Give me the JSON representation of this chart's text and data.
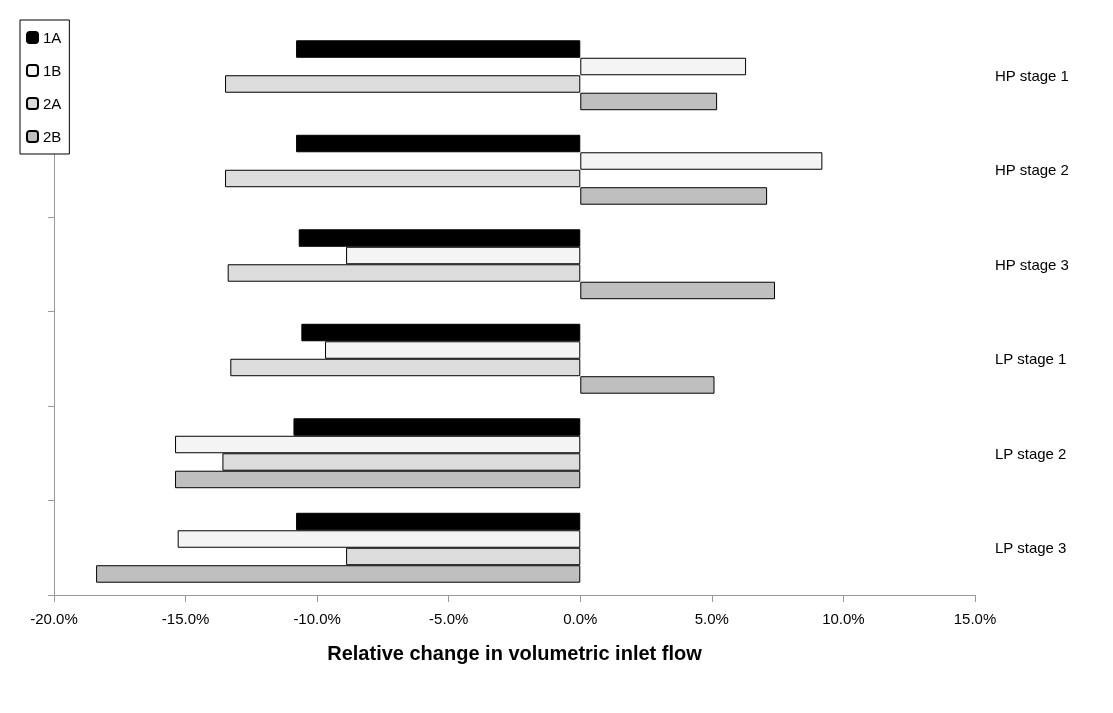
{
  "chart_data": {
    "type": "bar",
    "orientation": "horizontal",
    "xlabel": "Relative change in volumetric inlet flow",
    "categories": [
      "HP stage 1",
      "HP stage 2",
      "HP stage 3",
      "LP stage 1",
      "LP stage 2",
      "LP stage 3"
    ],
    "series": [
      {
        "name": "1A",
        "color": "#000000",
        "values": [
          -10.8,
          -10.8,
          -10.7,
          -10.6,
          -10.9,
          -10.8
        ]
      },
      {
        "name": "1B",
        "color": "#f4f4f4",
        "values": [
          6.3,
          9.2,
          -8.9,
          -9.7,
          -15.4,
          -15.3
        ]
      },
      {
        "name": "2A",
        "color": "#dcdcdc",
        "values": [
          -13.5,
          -13.5,
          -13.4,
          -13.3,
          -13.6,
          -8.9
        ]
      },
      {
        "name": "2B",
        "color": "#bfbfbf",
        "values": [
          5.2,
          7.1,
          7.4,
          5.1,
          -15.4,
          -18.4
        ]
      }
    ],
    "xlim": [
      -20,
      15
    ],
    "xticks": [
      {
        "value": -20,
        "label": "-20.0%"
      },
      {
        "value": -15,
        "label": "-15.0%"
      },
      {
        "value": -10,
        "label": "-10.0%"
      },
      {
        "value": -5,
        "label": "-5.0%"
      },
      {
        "value": 0,
        "label": "0.0%"
      },
      {
        "value": 5,
        "label": "5.0%"
      },
      {
        "value": 10,
        "label": "10.0%"
      },
      {
        "value": 15,
        "label": "15.0%"
      }
    ],
    "legend": "top left",
    "grid": false
  }
}
